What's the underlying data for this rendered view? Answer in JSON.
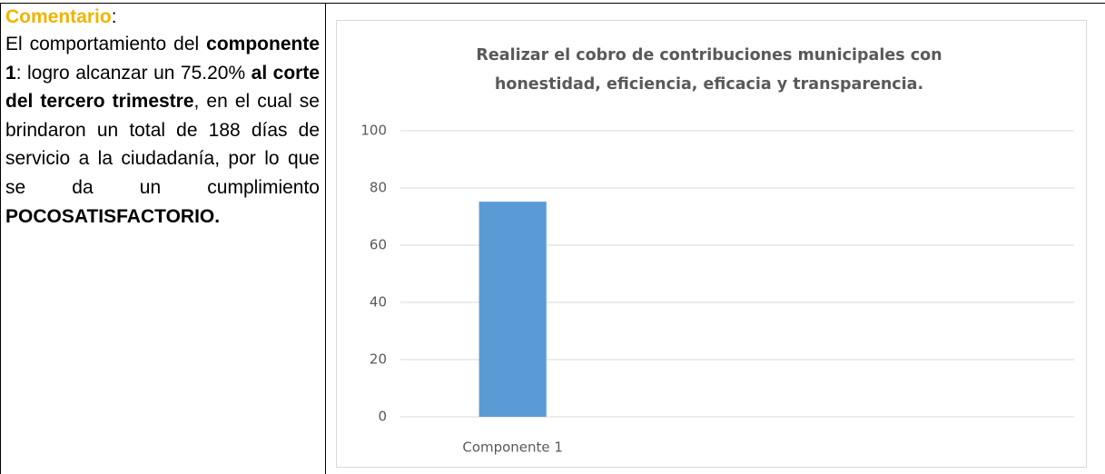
{
  "comment": {
    "label": "Comentario",
    "colon": ":",
    "runs": [
      {
        "text": "El comportamiento del ",
        "bold": false
      },
      {
        "text": "componente 1",
        "bold": true
      },
      {
        "text": ": logro alcanzar un 75.20% ",
        "bold": false
      },
      {
        "text": "al corte del tercero trimestre",
        "bold": true
      },
      {
        "text": ", en el cual se brindaron un total de 188 días de servicio a la ciudadanía, por lo que se da un cumplimiento ",
        "bold": false
      },
      {
        "text": "POCOSATISFACTORIO.",
        "bold": true
      }
    ]
  },
  "chart_data": {
    "type": "bar",
    "title": "Realizar el cobro de contribuciones municipales con honestidad, eficiencia, eficacia y transparencia.",
    "categories": [
      "Componente 1"
    ],
    "values": [
      75.2
    ],
    "color": "#5b9bd5",
    "ylim": [
      0,
      100
    ],
    "yticks": [
      0,
      20,
      40,
      60,
      80,
      100
    ],
    "grid": true
  }
}
